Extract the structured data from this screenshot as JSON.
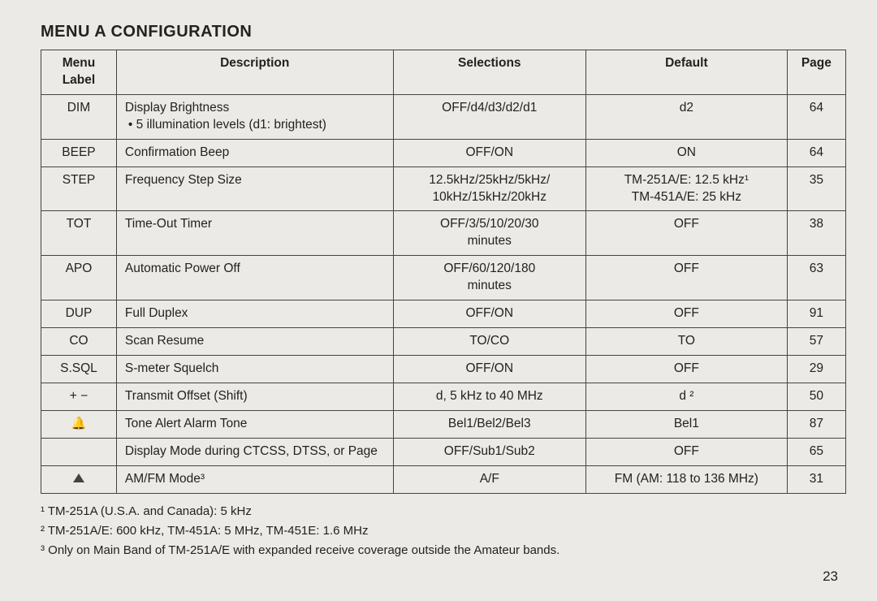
{
  "title": "MENU A CONFIGURATION",
  "headers": {
    "menu": "Menu\nLabel",
    "desc": "Description",
    "sel": "Selections",
    "def": "Default",
    "page": "Page"
  },
  "rows": [
    {
      "lbl": "DIM",
      "desc": "Display Brightness",
      "desc2": "•  5 illumination levels (d1: brightest)",
      "sel": "OFF/d4/d3/d2/d1",
      "def": "d2",
      "page": "64"
    },
    {
      "lbl": "BEEP",
      "desc": "Confirmation Beep",
      "sel": "OFF/ON",
      "def": "ON",
      "page": "64"
    },
    {
      "lbl": "STEP",
      "desc": "Frequency Step Size",
      "sel": "12.5kHz/25kHz/5kHz/\n10kHz/15kHz/20kHz",
      "def": "TM-251A/E: 12.5 kHz¹\nTM-451A/E: 25 kHz",
      "page": "35"
    },
    {
      "lbl": "TOT",
      "desc": "Time-Out Timer",
      "sel": "OFF/3/5/10/20/30\nminutes",
      "def": "OFF",
      "page": "38"
    },
    {
      "lbl": "APO",
      "desc": "Automatic Power Off",
      "sel": "OFF/60/120/180\nminutes",
      "def": "OFF",
      "page": "63"
    },
    {
      "lbl": "DUP",
      "desc": "Full Duplex",
      "sel": "OFF/ON",
      "def": "OFF",
      "page": "91"
    },
    {
      "lbl": "CO",
      "desc": "Scan Resume",
      "sel": "TO/CO",
      "def": "TO",
      "page": "57"
    },
    {
      "lbl": "S.SQL",
      "desc": "S-meter Squelch",
      "sel": "OFF/ON",
      "def": "OFF",
      "page": "29"
    },
    {
      "lbl": "+ −",
      "desc": "Transmit Offset (Shift)",
      "sel": "d, 5 kHz to 40 MHz",
      "def": "d ²",
      "page": "50"
    },
    {
      "lbl": "__BELL__",
      "desc": "Tone Alert Alarm Tone",
      "sel": "Bel1/Bel2/Bel3",
      "def": "Bel1",
      "page": "87"
    },
    {
      "lbl": "",
      "desc": "Display Mode during CTCSS, DTSS, or Page",
      "sel": "OFF/Sub1/Sub2",
      "def": "OFF",
      "page": "65"
    },
    {
      "lbl": "__TRI__",
      "desc": "AM/FM Mode³",
      "sel": "A/F",
      "def": "FM (AM: 118 to 136 MHz)",
      "page": "31"
    }
  ],
  "footnotes": [
    "¹ TM-251A (U.S.A. and Canada): 5 kHz",
    "² TM-251A/E: 600 kHz, TM-451A: 5 MHz, TM-451E: 1.6 MHz",
    "³ Only on Main Band of TM-251A/E with expanded receive coverage outside the Amateur bands."
  ],
  "pagenum": "23"
}
